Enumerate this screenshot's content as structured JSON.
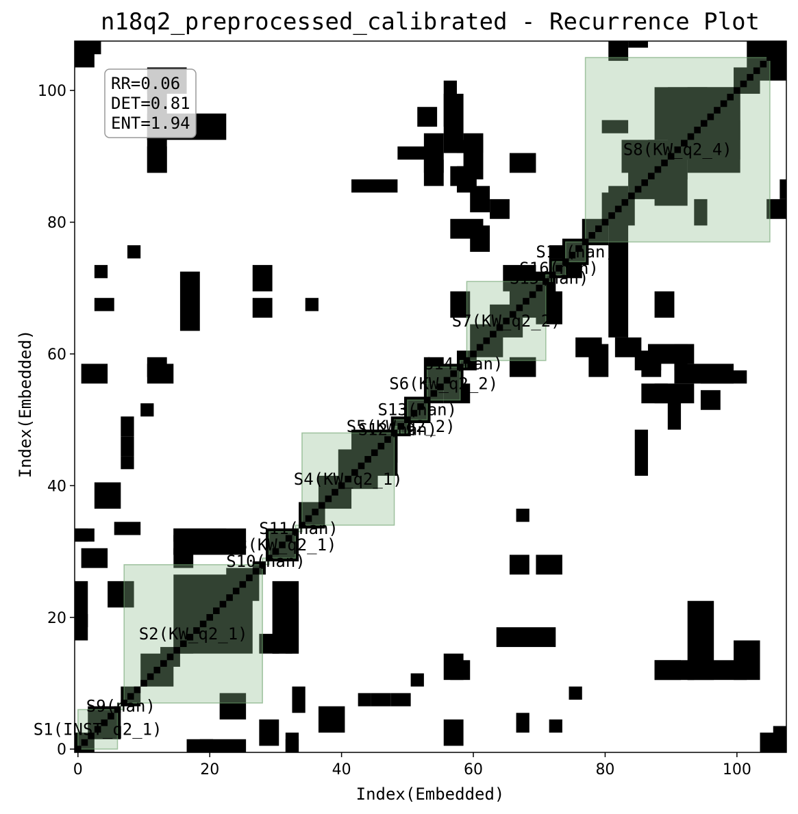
{
  "chart_data": {
    "type": "heatmap",
    "title": "n18q2_preprocessed_calibrated - Recurrence Plot",
    "xlabel": "Index(Embedded)",
    "ylabel": "Index(Embedded)",
    "xlim": [
      -0.5,
      107.5
    ],
    "ylim": [
      -0.5,
      107.5
    ],
    "xticks": [
      0,
      20,
      40,
      60,
      80,
      100
    ],
    "yticks": [
      0,
      20,
      40,
      60,
      80,
      100
    ],
    "colors": {
      "recurrence": "#000000",
      "segment_fill": "#8fbc8f",
      "segment_edge": "#6aa06a",
      "background": "#ffffff"
    },
    "stats": {
      "lines": [
        "RR=0.06",
        "DET=0.81",
        "ENT=1.94"
      ]
    },
    "segments": [
      {
        "label": "S1(INST_q2_1)",
        "start": 0,
        "end": 6
      },
      {
        "label": "S2(KW_q2_1)",
        "start": 7,
        "end": 28
      },
      {
        "label": "S3(KW_q2_1)",
        "start": 29,
        "end": 33
      },
      {
        "label": "S4(KW_q2_1)",
        "start": 34,
        "end": 48
      },
      {
        "label": "S5(KW_q2_2)",
        "start": 48,
        "end": 50
      },
      {
        "label": "S6(KW_q2_2)",
        "start": 53,
        "end": 58
      },
      {
        "label": "S7(KW_q2_2)",
        "start": 59,
        "end": 71
      },
      {
        "label": "S8(KW_q2_4)",
        "start": 77,
        "end": 105
      },
      {
        "label": "S9(nan)",
        "start": 6,
        "end": 7
      },
      {
        "label": "S10(nan)",
        "start": 28,
        "end": 29
      },
      {
        "label": "S11(nan)",
        "start": 33,
        "end": 34
      },
      {
        "label": "S12(nan)",
        "start": 48,
        "end": 49
      },
      {
        "label": "S13(nan)",
        "start": 50,
        "end": 53
      },
      {
        "label": "S14(nan)",
        "start": 58,
        "end": 59
      },
      {
        "label": "S15(nan)",
        "start": 71,
        "end": 72
      },
      {
        "label": "S16(nan)",
        "start": 72,
        "end": 74
      },
      {
        "label": "S17(nan)",
        "start": 74,
        "end": 77
      }
    ],
    "recurrence_blocks": [
      [
        0,
        0,
        2,
        2
      ],
      [
        2,
        2,
        6,
        6
      ],
      [
        7,
        7,
        9,
        9
      ],
      [
        10,
        10,
        14,
        14
      ],
      [
        11,
        11,
        13,
        13
      ],
      [
        13,
        13,
        15,
        15
      ],
      [
        15,
        15,
        17,
        17
      ],
      [
        16,
        16,
        20,
        20
      ],
      [
        15,
        15,
        26,
        26
      ],
      [
        17,
        17,
        25,
        25
      ],
      [
        18,
        18,
        21,
        21
      ],
      [
        20,
        20,
        24,
        24
      ],
      [
        23,
        23,
        27,
        27
      ],
      [
        27,
        27,
        28,
        28
      ],
      [
        29,
        29,
        33,
        33
      ],
      [
        34,
        34,
        37,
        37
      ],
      [
        37,
        37,
        41,
        41
      ],
      [
        40,
        40,
        45,
        45
      ],
      [
        42,
        42,
        48,
        48
      ],
      [
        44,
        44,
        48,
        48
      ],
      [
        48,
        48,
        50,
        50
      ],
      [
        50,
        50,
        53,
        53
      ],
      [
        53,
        53,
        55,
        55
      ],
      [
        55,
        55,
        58,
        58
      ],
      [
        58,
        58,
        60,
        60
      ],
      [
        60,
        60,
        64,
        64
      ],
      [
        63,
        63,
        67,
        67
      ],
      [
        66,
        66,
        71,
        71
      ],
      [
        69,
        69,
        72,
        72
      ],
      [
        72,
        72,
        74,
        74
      ],
      [
        74,
        74,
        77,
        77
      ],
      [
        77,
        77,
        80,
        80
      ],
      [
        80,
        80,
        84,
        84
      ],
      [
        84,
        84,
        88,
        88
      ],
      [
        87,
        87,
        92,
        92
      ],
      [
        90,
        90,
        100,
        100
      ],
      [
        93,
        93,
        100,
        100
      ],
      [
        100,
        100,
        103,
        103
      ],
      [
        103,
        103,
        105,
        105
      ],
      [
        88,
        93,
        95,
        100
      ],
      [
        93,
        88,
        100,
        95
      ],
      [
        83,
        88,
        91,
        92
      ],
      [
        88,
        83,
        92,
        91
      ],
      [
        0,
        17,
        1,
        20
      ],
      [
        17,
        0,
        20,
        1
      ],
      [
        0,
        19,
        1,
        25
      ],
      [
        19,
        0,
        25,
        1
      ],
      [
        0,
        32,
        1,
        33
      ],
      [
        32,
        0,
        33,
        1
      ],
      [
        15,
        28,
        17,
        30
      ],
      [
        28,
        15,
        30,
        17
      ],
      [
        15,
        30,
        25,
        33
      ],
      [
        30,
        15,
        33,
        25
      ],
      [
        30,
        15,
        32,
        17
      ],
      [
        15,
        30,
        17,
        32
      ],
      [
        32,
        15,
        33,
        22
      ],
      [
        15,
        32,
        22,
        33
      ],
      [
        32,
        0,
        33,
        2
      ],
      [
        0,
        32,
        2,
        33
      ],
      [
        28,
        1,
        30,
        4
      ],
      [
        1,
        28,
        4,
        30
      ],
      [
        22,
        5,
        25,
        8
      ],
      [
        5,
        22,
        8,
        25
      ],
      [
        6,
        33,
        9,
        34
      ],
      [
        33,
        6,
        34,
        9
      ],
      [
        3,
        37,
        6,
        40
      ],
      [
        37,
        3,
        40,
        6
      ],
      [
        11,
        57,
        13,
        59
      ],
      [
        57,
        11,
        59,
        13
      ],
      [
        11,
        88,
        13,
        90
      ],
      [
        88,
        11,
        90,
        13
      ],
      [
        11,
        93,
        13,
        101
      ],
      [
        93,
        11,
        101,
        13
      ],
      [
        3,
        67,
        5,
        68
      ],
      [
        67,
        3,
        68,
        5
      ],
      [
        27,
        70,
        29,
        73
      ],
      [
        70,
        27,
        73,
        29
      ],
      [
        27,
        66,
        29,
        68
      ],
      [
        66,
        27,
        68,
        29
      ],
      [
        35,
        67,
        36,
        68
      ],
      [
        67,
        35,
        68,
        36
      ],
      [
        7,
        48,
        8,
        50
      ],
      [
        48,
        7,
        50,
        8
      ],
      [
        7,
        45,
        8,
        47
      ],
      [
        45,
        7,
        47,
        8
      ],
      [
        7,
        43,
        8,
        44
      ],
      [
        43,
        7,
        44,
        8
      ],
      [
        10,
        51,
        11,
        52
      ],
      [
        51,
        10,
        52,
        11
      ],
      [
        3,
        72,
        4,
        73
      ],
      [
        72,
        3,
        73,
        4
      ],
      [
        8,
        75,
        9,
        76
      ],
      [
        75,
        8,
        76,
        9
      ],
      [
        56,
        11,
        58,
        14
      ],
      [
        11,
        56,
        14,
        58
      ],
      [
        56,
        1,
        58,
        4
      ],
      [
        1,
        56,
        4,
        58
      ],
      [
        52,
        95,
        54,
        97
      ],
      [
        95,
        52,
        97,
        54
      ],
      [
        53,
        88,
        55,
        93
      ],
      [
        88,
        53,
        93,
        55
      ],
      [
        56,
        91,
        58,
        99
      ],
      [
        91,
        56,
        99,
        58
      ],
      [
        53,
        86,
        55,
        89
      ],
      [
        86,
        53,
        89,
        55
      ],
      [
        57,
        66,
        59,
        69
      ],
      [
        66,
        57,
        69,
        59
      ],
      [
        60,
        82,
        62,
        85
      ],
      [
        82,
        60,
        85,
        62
      ],
      [
        63,
        81,
        65,
        83
      ],
      [
        81,
        63,
        83,
        85
      ],
      [
        66,
        88,
        69,
        90
      ],
      [
        88,
        66,
        90,
        69
      ],
      [
        60,
        76,
        62,
        79
      ],
      [
        76,
        60,
        79,
        62
      ],
      [
        78,
        57,
        80,
        61
      ],
      [
        57,
        78,
        61,
        80
      ],
      [
        86,
        57,
        88,
        59
      ],
      [
        57,
        86,
        59,
        88
      ],
      [
        85,
        58,
        88,
        60
      ],
      [
        58,
        85,
        60,
        88
      ],
      [
        87,
        59,
        93,
        61
      ],
      [
        59,
        87,
        61,
        93
      ],
      [
        95,
        56,
        101,
        57
      ],
      [
        56,
        95,
        57,
        101
      ],
      [
        56,
        53,
        59,
        55
      ],
      [
        53,
        56,
        55,
        59
      ],
      [
        64,
        16,
        72,
        18
      ],
      [
        16,
        64,
        18,
        72
      ],
      [
        70,
        65,
        73,
        69
      ],
      [
        65,
        70,
        69,
        73
      ],
      [
        11,
        88,
        13,
        91
      ],
      [
        88,
        11,
        91,
        13
      ],
      [
        11,
        91,
        13,
        93
      ],
      [
        91,
        11,
        93,
        13
      ],
      [
        11,
        100,
        16,
        103
      ],
      [
        100,
        11,
        103,
        16
      ],
      [
        11,
        93,
        22,
        96
      ],
      [
        93,
        11,
        96,
        22
      ],
      [
        104,
        0,
        106,
        2
      ],
      [
        0,
        104,
        2,
        106
      ],
      [
        106,
        0,
        108,
        3
      ],
      [
        0,
        106,
        3,
        108
      ],
      [
        102,
        104,
        107,
        108
      ],
      [
        104,
        102,
        108,
        107
      ],
      [
        81,
        105,
        83,
        107
      ],
      [
        105,
        81,
        107,
        83
      ],
      [
        84,
        107,
        86,
        108
      ],
      [
        107,
        84,
        108,
        86
      ],
      [
        80,
        94,
        83,
        95
      ],
      [
        94,
        80,
        95,
        83
      ],
      [
        58,
        91,
        61,
        92
      ],
      [
        91,
        58,
        92,
        61
      ],
      [
        72,
        75,
        75,
        76
      ],
      [
        75,
        72,
        76,
        75
      ],
      [
        49,
        90,
        53,
        91
      ],
      [
        90,
        49,
        91,
        53
      ],
      [
        42,
        85,
        48,
        86
      ],
      [
        85,
        42,
        86,
        48
      ]
    ]
  }
}
